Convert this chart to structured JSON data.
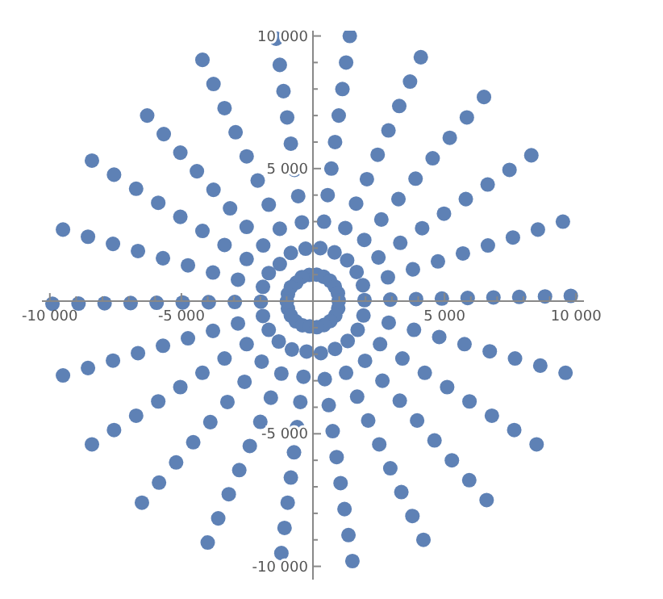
{
  "chart_data": {
    "type": "scatter",
    "marker": "circle",
    "grid": false,
    "xlim": [
      -10300,
      10300
    ],
    "ylim": [
      -10500,
      10200
    ],
    "xticks": [
      {
        "value": -10000,
        "label": "-10 000"
      },
      {
        "value": -9000,
        "label": null
      },
      {
        "value": -8000,
        "label": null
      },
      {
        "value": -7000,
        "label": null
      },
      {
        "value": -6000,
        "label": null
      },
      {
        "value": -5000,
        "label": "-5 000"
      },
      {
        "value": -4000,
        "label": null
      },
      {
        "value": -3000,
        "label": null
      },
      {
        "value": -2000,
        "label": null
      },
      {
        "value": -1000,
        "label": null
      },
      {
        "value": 1000,
        "label": null
      },
      {
        "value": 2000,
        "label": null
      },
      {
        "value": 3000,
        "label": null
      },
      {
        "value": 4000,
        "label": null
      },
      {
        "value": 5000,
        "label": "5 000"
      },
      {
        "value": 6000,
        "label": null
      },
      {
        "value": 7000,
        "label": null
      },
      {
        "value": 8000,
        "label": null
      },
      {
        "value": 9000,
        "label": null
      },
      {
        "value": 10000,
        "label": "10 000"
      }
    ],
    "yticks": [
      {
        "value": -10000,
        "label": "-10 000"
      },
      {
        "value": -9000,
        "label": null
      },
      {
        "value": -8000,
        "label": null
      },
      {
        "value": -7000,
        "label": null
      },
      {
        "value": -6000,
        "label": null
      },
      {
        "value": -5000,
        "label": "-5 000"
      },
      {
        "value": -4000,
        "label": null
      },
      {
        "value": -3000,
        "label": null
      },
      {
        "value": -2000,
        "label": null
      },
      {
        "value": -1000,
        "label": null
      },
      {
        "value": 1000,
        "label": null
      },
      {
        "value": 2000,
        "label": null
      },
      {
        "value": 3000,
        "label": null
      },
      {
        "value": 4000,
        "label": null
      },
      {
        "value": 5000,
        "label": "5 000"
      },
      {
        "value": 6000,
        "label": null
      },
      {
        "value": 7000,
        "label": null
      },
      {
        "value": 8000,
        "label": null
      },
      {
        "value": 9000,
        "label": null
      },
      {
        "value": 10000,
        "label": "10 000"
      }
    ],
    "series": [
      {
        "color": "#5e81b5",
        "x": [
          -140,
          -280,
          -420,
          -560,
          -700,
          -840,
          -980,
          -1120,
          -1260,
          -1400,
          -420,
          -840,
          -1260,
          -1680,
          -2100,
          -2520,
          -2940,
          -3360,
          -3780,
          -4200,
          -630,
          -1260,
          -1890,
          -2520,
          -3150,
          -3780,
          -4410,
          -5040,
          -5670,
          -6300,
          -840,
          -1680,
          -2520,
          -3360,
          -4200,
          -5040,
          -5880,
          -6720,
          -7560,
          -8400,
          -950,
          -1900,
          -2850,
          -3800,
          -4750,
          -5700,
          -6650,
          -7600,
          -8550,
          -9500,
          -990,
          -1980,
          -2970,
          -3960,
          -4950,
          -5940,
          -6930,
          -7920,
          -8910,
          -9900,
          140,
          280,
          420,
          560,
          700,
          840,
          980,
          1120,
          1260,
          1400,
          410,
          820,
          1230,
          1640,
          2050,
          2460,
          2870,
          3280,
          3690,
          4100,
          650,
          1300,
          1950,
          2600,
          3250,
          3900,
          4550,
          5200,
          5850,
          6500,
          830,
          1660,
          2490,
          3320,
          4150,
          4980,
          5810,
          6640,
          7470,
          8300,
          950,
          1900,
          2850,
          3800,
          4750,
          5700,
          6650,
          7600,
          8550,
          9500,
          980,
          1960,
          2940,
          3920,
          4900,
          5880,
          6860,
          7840,
          8820,
          9800,
          -950,
          -1900,
          -2850,
          -3800,
          -4750,
          -5700,
          -6650,
          -7600,
          -8550,
          -9500,
          -840,
          -1680,
          -2520,
          -3360,
          -4200,
          -5040,
          -5880,
          -6720,
          -7560,
          -8400,
          -650,
          -1300,
          -1950,
          -2600,
          -3250,
          -3900,
          -4550,
          -5200,
          -5850,
          -6500,
          -400,
          -800,
          -1200,
          -1600,
          -2000,
          -2400,
          -2800,
          -3200,
          -3600,
          -4000,
          -120,
          -240,
          -360,
          -480,
          -600,
          -720,
          -840,
          -960,
          -1080,
          -1200,
          960,
          1920,
          2880,
          3840,
          4800,
          5760,
          6720,
          7680,
          8640,
          9600,
          850,
          1700,
          2550,
          3400,
          4250,
          5100,
          5950,
          6800,
          7650,
          8500,
          660,
          1320,
          1980,
          2640,
          3300,
          3960,
          4620,
          5280,
          5940,
          6600,
          420,
          840,
          1260,
          1680,
          2100,
          2520,
          2940,
          3360,
          3780,
          4200,
          150,
          300,
          450,
          600,
          750,
          900,
          1050,
          1200,
          1350,
          1500
        ],
        "values": [
          990,
          1980,
          2970,
          3960,
          4950,
          5940,
          6930,
          7920,
          8910,
          9900,
          910,
          1820,
          2730,
          3640,
          4550,
          5460,
          6370,
          7280,
          8190,
          9100,
          700,
          1400,
          2100,
          2800,
          3500,
          4200,
          4900,
          5600,
          6300,
          7000,
          530,
          1060,
          1590,
          2120,
          2650,
          3180,
          3710,
          4240,
          4770,
          5300,
          270,
          540,
          810,
          1080,
          1350,
          1620,
          1890,
          2160,
          2430,
          2700,
          -10,
          -20,
          -30,
          -40,
          -50,
          -60,
          -70,
          -80,
          -90,
          -100,
          1000,
          2000,
          3000,
          4000,
          5000,
          6000,
          7000,
          8000,
          9000,
          10000,
          920,
          1840,
          2760,
          3680,
          4600,
          5520,
          6440,
          7360,
          8280,
          9200,
          770,
          1540,
          2310,
          3080,
          3850,
          4620,
          5390,
          6160,
          6930,
          7700,
          550,
          1100,
          1650,
          2200,
          2750,
          3300,
          3850,
          4400,
          4950,
          5500,
          300,
          600,
          900,
          1200,
          1500,
          1800,
          2100,
          2400,
          2700,
          3000,
          20,
          40,
          60,
          80,
          100,
          120,
          140,
          160,
          180,
          200,
          -280,
          -560,
          -840,
          -1120,
          -1400,
          -1680,
          -1960,
          -2240,
          -2520,
          -2800,
          -540,
          -1080,
          -1620,
          -2160,
          -2700,
          -3240,
          -3780,
          -4320,
          -4860,
          -5400,
          -760,
          -1520,
          -2280,
          -3040,
          -3800,
          -4560,
          -5320,
          -6080,
          -6840,
          -7600,
          -910,
          -1820,
          -2730,
          -3640,
          -4550,
          -5460,
          -6370,
          -7280,
          -8190,
          -9100,
          -950,
          -1900,
          -2850,
          -3800,
          -4750,
          -5700,
          -6650,
          -7600,
          -8550,
          -9500,
          -270,
          -540,
          -810,
          -1080,
          -1350,
          -1620,
          -1890,
          -2160,
          -2430,
          -2700,
          -540,
          -1080,
          -1620,
          -2160,
          -2700,
          -3240,
          -3780,
          -4320,
          -4860,
          -5400,
          -750,
          -1500,
          -2250,
          -3000,
          -3750,
          -4500,
          -5250,
          -6000,
          -6750,
          -7500,
          -900,
          -1800,
          -2700,
          -3600,
          -4500,
          -5400,
          -6300,
          -7200,
          -8100,
          -9000,
          -980,
          -1960,
          -2940,
          -3920,
          -4900,
          -5880,
          -6860,
          -7840,
          -8820,
          -9800
        ]
      }
    ]
  }
}
